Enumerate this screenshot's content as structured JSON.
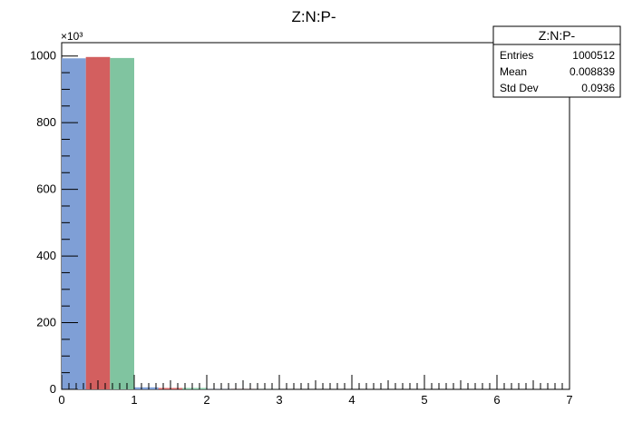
{
  "chart_data": {
    "type": "bar",
    "title": "Z:N:P-",
    "x_axis": {
      "range": [
        0,
        7
      ],
      "tick_labels": [
        "0",
        "1",
        "2",
        "3",
        "4",
        "5",
        "6",
        "7"
      ]
    },
    "y_axis": {
      "range": [
        0,
        1040
      ],
      "multiplier_label": "×10³",
      "tick_values": [
        0,
        200,
        400,
        600,
        800,
        1000
      ],
      "tick_labels": [
        "0",
        "200",
        "400",
        "600",
        "800",
        "1000"
      ]
    },
    "grid": false,
    "bin_groups": [
      {
        "bins": [
          0,
          0.3333,
          0.6667,
          1.0
        ],
        "values": [
          993,
          997,
          994
        ]
      },
      {
        "bins": [
          1.0,
          1.3333,
          1.6667,
          2.0
        ],
        "values": [
          6,
          4,
          4
        ]
      },
      {
        "bins": [
          2.0,
          2.3333,
          2.6667,
          3.0
        ],
        "values": [
          0.5,
          0.3,
          0.3
        ]
      }
    ],
    "series_colors": [
      "#7f9fd6",
      "#d35f5f",
      "#80c4a0"
    ],
    "stats_box": {
      "title": "Z:N:P-",
      "placement": "top-right",
      "rows": [
        {
          "label": "Entries",
          "value": "1000512"
        },
        {
          "label": "Mean",
          "value": "0.008839"
        },
        {
          "label": "Std Dev",
          "value": "0.0936"
        }
      ]
    }
  }
}
